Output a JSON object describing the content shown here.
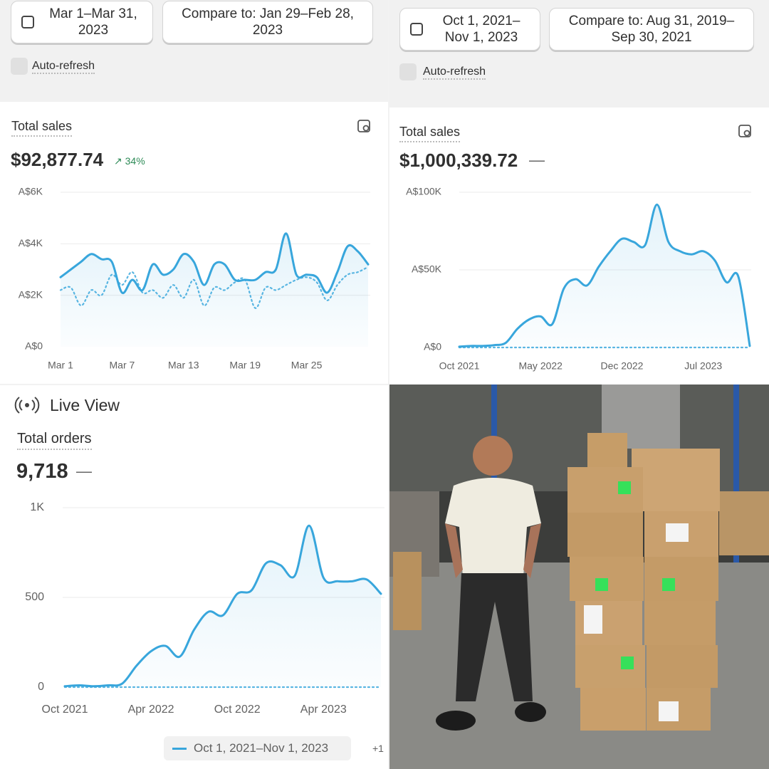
{
  "panels": [
    {
      "date_range": "Mar 1–Mar 31, 2023",
      "compare": "Compare to: Jan 29–Feb 28, 2023",
      "auto_refresh": "Auto-refresh"
    },
    {
      "date_range": "Oct 1, 2021–Nov 1, 2023",
      "compare": "Compare to: Aug 31, 2019–Sep 30, 2021",
      "auto_refresh": "Auto-refresh"
    }
  ],
  "live_view": "Live View",
  "chart_data": [
    {
      "type": "line",
      "title": "Total sales",
      "total": "$92,877.74",
      "change": "34%",
      "categories": [
        "Mar 1",
        null,
        null,
        null,
        null,
        null,
        "Mar 7",
        null,
        null,
        null,
        null,
        null,
        "Mar 13",
        null,
        null,
        null,
        null,
        null,
        "Mar 19",
        null,
        null,
        null,
        null,
        null,
        "Mar 25",
        null,
        null,
        null,
        null,
        null,
        null
      ],
      "series": [
        {
          "color": "#38a6dc",
          "style": "solid",
          "values": [
            2700,
            3000,
            3300,
            3600,
            3400,
            3300,
            2100,
            2600,
            2200,
            3200,
            2800,
            3000,
            3600,
            3300,
            2400,
            3200,
            3200,
            2600,
            2600,
            2600,
            2900,
            3000,
            4400,
            2800,
            2800,
            2700,
            2100,
            2900,
            3900,
            3700,
            3200
          ]
        },
        {
          "color": "#5ab6e2",
          "style": "dotted",
          "values": [
            2200,
            2300,
            1600,
            2200,
            2000,
            2800,
            2400,
            2900,
            2100,
            2200,
            1900,
            2400,
            1900,
            2600,
            1600,
            2300,
            2200,
            2500,
            2600,
            1500,
            2300,
            2200,
            2400,
            2600,
            2700,
            2500,
            1800,
            2400,
            2800,
            2900,
            3100
          ]
        }
      ],
      "ylim": [
        0,
        6000
      ],
      "yticks": [
        {
          "value": 0,
          "label": "A$0"
        },
        {
          "value": 2000,
          "label": "A$2K"
        },
        {
          "value": 4000,
          "label": "A$4K"
        },
        {
          "value": 6000,
          "label": "A$6K"
        }
      ],
      "grid": true
    },
    {
      "type": "line",
      "title": "Total sales",
      "total": "$1,000,339.72",
      "change": "—",
      "categories": [
        "Oct 2021",
        null,
        null,
        null,
        null,
        null,
        null,
        "May 2022",
        null,
        null,
        null,
        null,
        null,
        null,
        "Dec 2022",
        null,
        null,
        null,
        null,
        null,
        null,
        "Jul 2023",
        null,
        null,
        null,
        null
      ],
      "series": [
        {
          "color": "#38a6dc",
          "style": "solid",
          "values": [
            500,
            1000,
            1000,
            1500,
            3000,
            12000,
            18000,
            20000,
            15000,
            38000,
            44000,
            40000,
            52000,
            62000,
            70000,
            68000,
            66000,
            92000,
            68000,
            62000,
            60000,
            62000,
            56000,
            42000,
            46000,
            1000
          ]
        },
        {
          "color": "#5ab6e2",
          "style": "dotted",
          "values": [
            0,
            0,
            0,
            0,
            0,
            0,
            0,
            0,
            0,
            0,
            0,
            0,
            0,
            0,
            0,
            0,
            0,
            0,
            0,
            0,
            0,
            0,
            0,
            0,
            0,
            0
          ]
        }
      ],
      "ylim": [
        0,
        100000
      ],
      "yticks": [
        {
          "value": 0,
          "label": "A$0"
        },
        {
          "value": 50000,
          "label": "A$50K"
        },
        {
          "value": 100000,
          "label": "A$100K"
        }
      ],
      "grid": true
    },
    {
      "type": "line",
      "title": "Total orders",
      "total": "9,718",
      "change": "—",
      "categories": [
        "Oct 2021",
        null,
        null,
        null,
        null,
        null,
        "Apr 2022",
        null,
        null,
        null,
        null,
        null,
        "Oct 2022",
        null,
        null,
        null,
        null,
        null,
        "Apr 2023",
        null,
        null,
        null,
        null
      ],
      "series": [
        {
          "name": "Oct 1, 2021–Nov 1, 2023",
          "color": "#38a6dc",
          "style": "solid",
          "values": [
            5,
            10,
            5,
            10,
            20,
            120,
            200,
            230,
            170,
            320,
            420,
            400,
            520,
            540,
            690,
            680,
            620,
            900,
            610,
            590,
            590,
            600,
            520
          ]
        },
        {
          "color": "#5ab6e2",
          "style": "dotted",
          "values": [
            0,
            0,
            0,
            0,
            0,
            0,
            0,
            0,
            0,
            0,
            0,
            0,
            0,
            0,
            0,
            0,
            0,
            0,
            0,
            0,
            0,
            0,
            0
          ]
        }
      ],
      "ylim": [
        0,
        1000
      ],
      "yticks": [
        0,
        500,
        {
          "value": 1000,
          "label": "1K"
        }
      ],
      "grid": true,
      "legend_more": "+1"
    }
  ]
}
